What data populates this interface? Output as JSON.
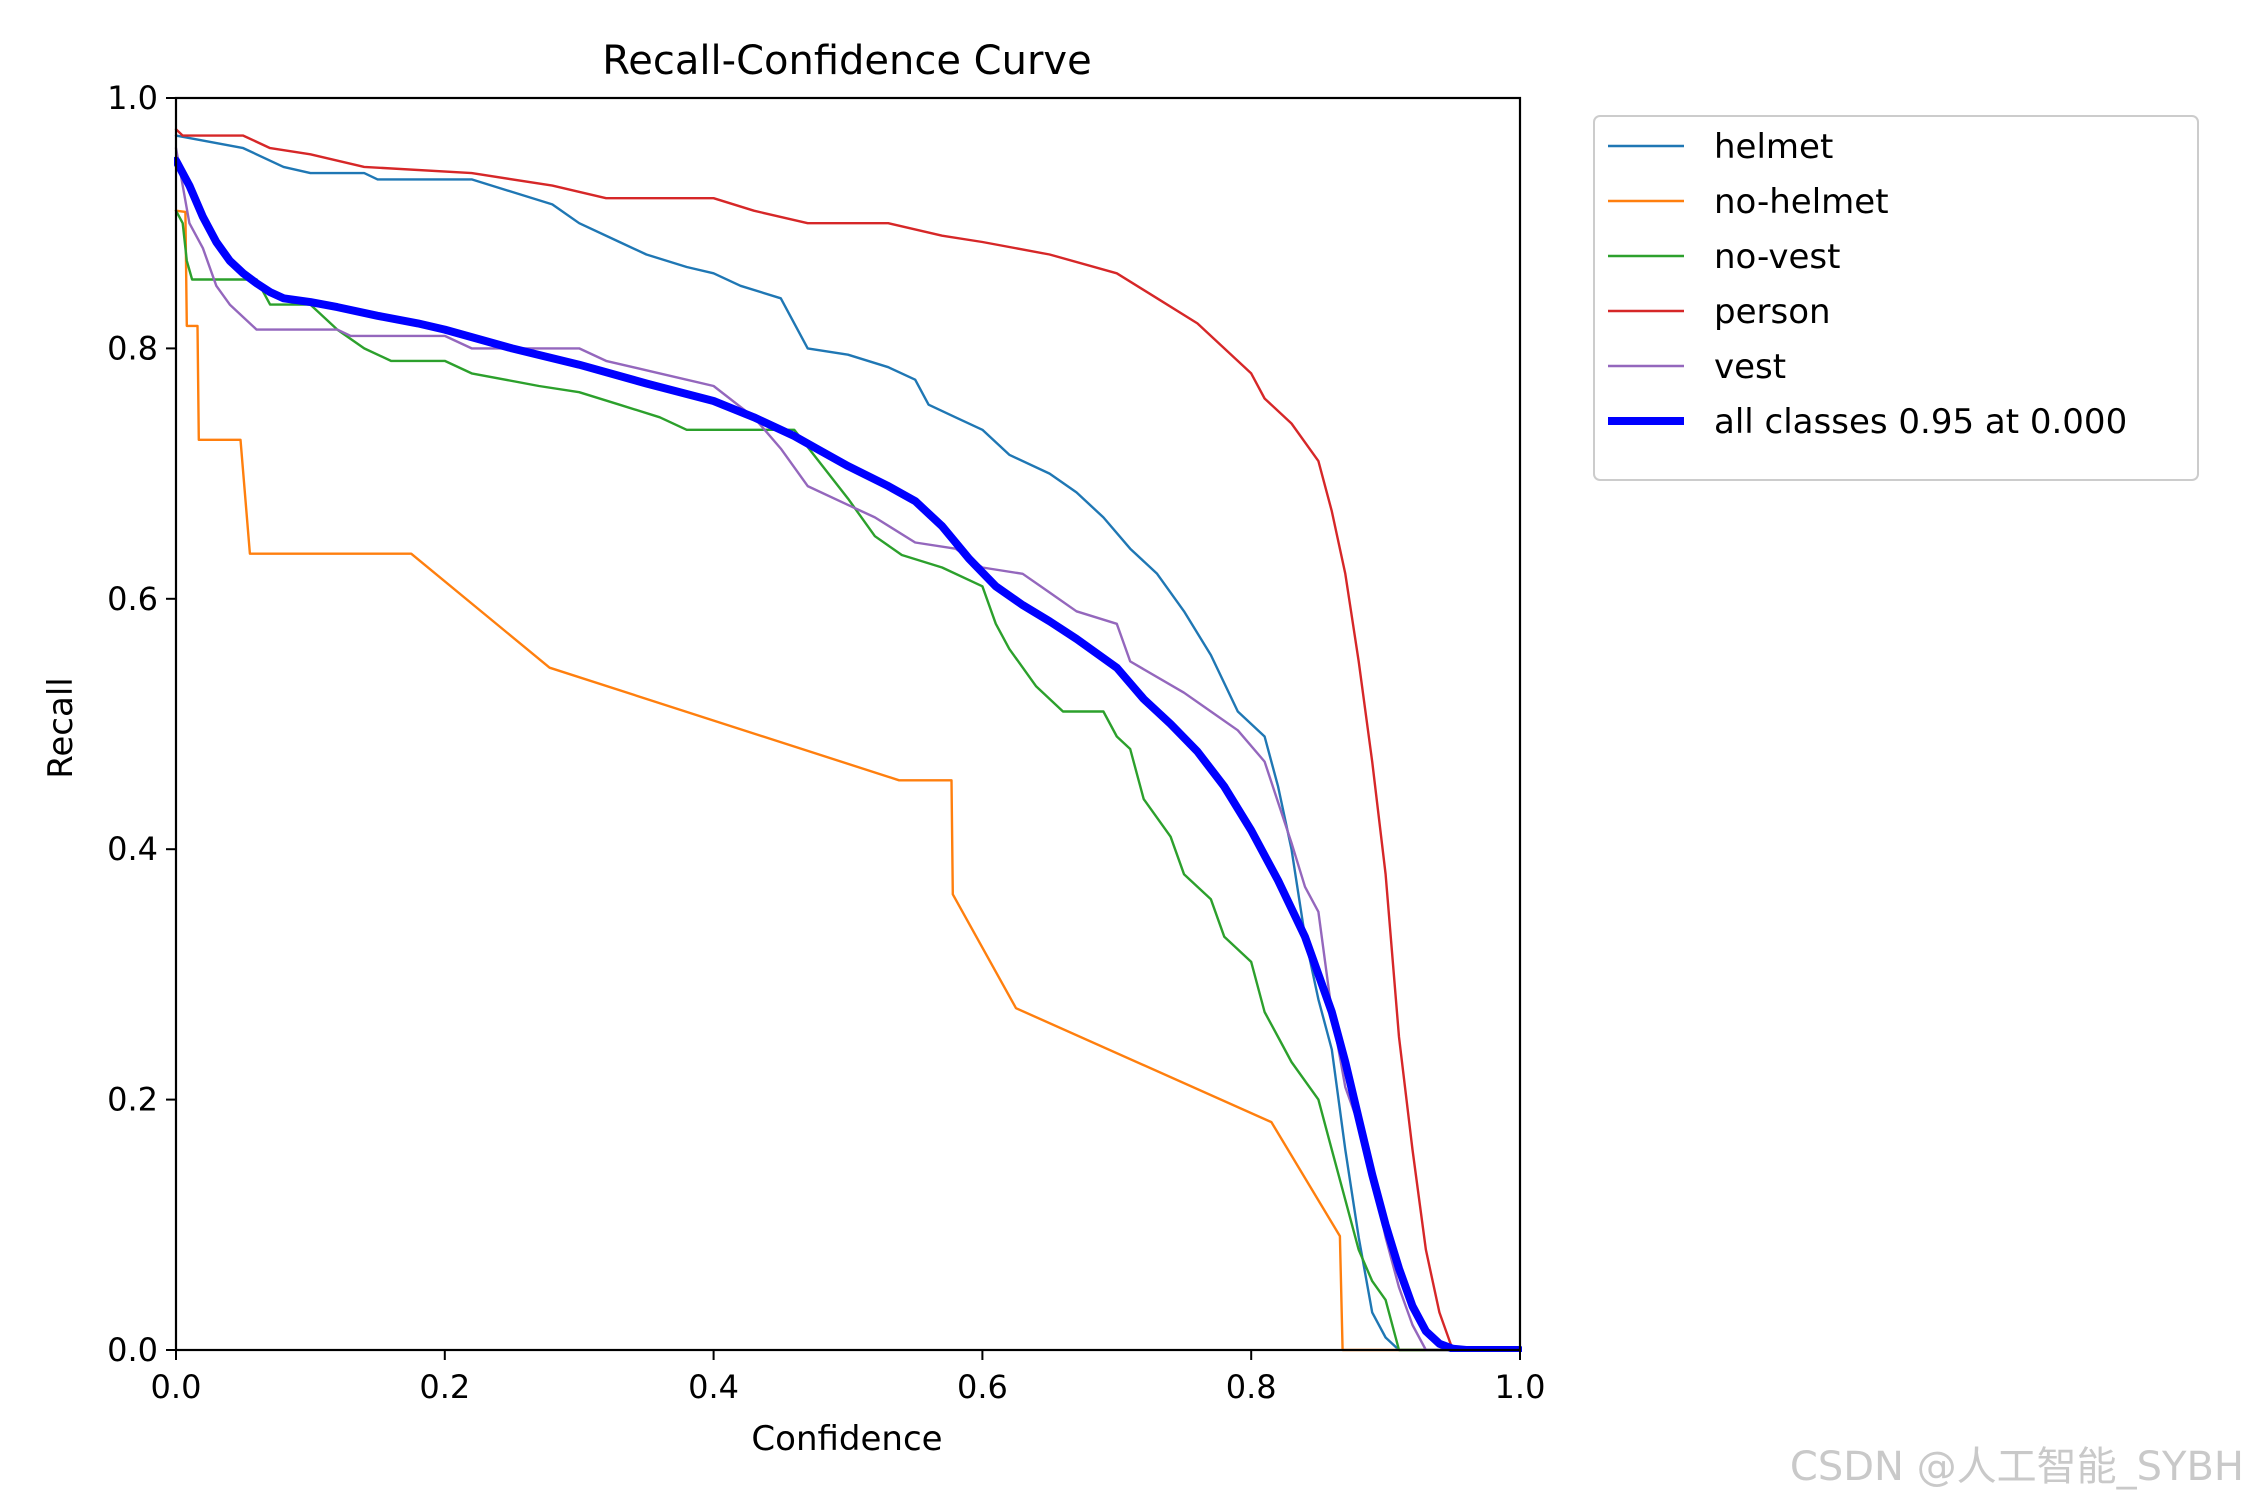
{
  "watermark": "CSDN @人工智能_SYBH",
  "chart_data": {
    "type": "line",
    "title": "Recall-Confidence Curve",
    "xlabel": "Confidence",
    "ylabel": "Recall",
    "xlim": [
      0,
      1
    ],
    "ylim": [
      0,
      1
    ],
    "xticks": [
      "0.0",
      "0.2",
      "0.4",
      "0.6",
      "0.8",
      "1.0"
    ],
    "yticks": [
      "0.0",
      "0.2",
      "0.4",
      "0.6",
      "0.8",
      "1.0"
    ],
    "grid": false,
    "legend_position": "outside-top-right",
    "series": [
      {
        "name": "helmet",
        "color": "#1f77b4",
        "points": [
          [
            0.0,
            0.97
          ],
          [
            0.05,
            0.96
          ],
          [
            0.08,
            0.945
          ],
          [
            0.1,
            0.94
          ],
          [
            0.14,
            0.94
          ],
          [
            0.15,
            0.935
          ],
          [
            0.22,
            0.935
          ],
          [
            0.25,
            0.925
          ],
          [
            0.28,
            0.915
          ],
          [
            0.3,
            0.9
          ],
          [
            0.33,
            0.885
          ],
          [
            0.35,
            0.875
          ],
          [
            0.38,
            0.865
          ],
          [
            0.4,
            0.86
          ],
          [
            0.42,
            0.85
          ],
          [
            0.45,
            0.84
          ],
          [
            0.47,
            0.8
          ],
          [
            0.5,
            0.795
          ],
          [
            0.53,
            0.785
          ],
          [
            0.55,
            0.775
          ],
          [
            0.56,
            0.755
          ],
          [
            0.58,
            0.745
          ],
          [
            0.6,
            0.735
          ],
          [
            0.62,
            0.715
          ],
          [
            0.65,
            0.7
          ],
          [
            0.67,
            0.685
          ],
          [
            0.69,
            0.665
          ],
          [
            0.71,
            0.64
          ],
          [
            0.73,
            0.62
          ],
          [
            0.75,
            0.59
          ],
          [
            0.77,
            0.555
          ],
          [
            0.79,
            0.51
          ],
          [
            0.8,
            0.5
          ],
          [
            0.81,
            0.49
          ],
          [
            0.82,
            0.45
          ],
          [
            0.83,
            0.4
          ],
          [
            0.84,
            0.33
          ],
          [
            0.85,
            0.28
          ],
          [
            0.86,
            0.24
          ],
          [
            0.87,
            0.16
          ],
          [
            0.88,
            0.09
          ],
          [
            0.89,
            0.03
          ],
          [
            0.9,
            0.01
          ],
          [
            0.91,
            0.0
          ],
          [
            1.0,
            0.0
          ]
        ]
      },
      {
        "name": "no-helmet",
        "color": "#ff7f0e",
        "points": [
          [
            0.0,
            0.91
          ],
          [
            0.007,
            0.909
          ],
          [
            0.008,
            0.818
          ],
          [
            0.016,
            0.818
          ],
          [
            0.017,
            0.727
          ],
          [
            0.048,
            0.727
          ],
          [
            0.055,
            0.636
          ],
          [
            0.175,
            0.636
          ],
          [
            0.278,
            0.545
          ],
          [
            0.538,
            0.455
          ],
          [
            0.577,
            0.455
          ],
          [
            0.578,
            0.364
          ],
          [
            0.625,
            0.273
          ],
          [
            0.815,
            0.182
          ],
          [
            0.866,
            0.091
          ],
          [
            0.868,
            0.0
          ],
          [
            1.0,
            0.0
          ]
        ]
      },
      {
        "name": "no-vest",
        "color": "#2ca02c",
        "points": [
          [
            0.0,
            0.91
          ],
          [
            0.005,
            0.9
          ],
          [
            0.008,
            0.87
          ],
          [
            0.012,
            0.855
          ],
          [
            0.06,
            0.855
          ],
          [
            0.07,
            0.835
          ],
          [
            0.1,
            0.835
          ],
          [
            0.12,
            0.815
          ],
          [
            0.14,
            0.8
          ],
          [
            0.16,
            0.79
          ],
          [
            0.2,
            0.79
          ],
          [
            0.22,
            0.78
          ],
          [
            0.27,
            0.77
          ],
          [
            0.3,
            0.765
          ],
          [
            0.33,
            0.755
          ],
          [
            0.36,
            0.745
          ],
          [
            0.38,
            0.735
          ],
          [
            0.46,
            0.735
          ],
          [
            0.5,
            0.68
          ],
          [
            0.52,
            0.65
          ],
          [
            0.54,
            0.635
          ],
          [
            0.57,
            0.625
          ],
          [
            0.6,
            0.61
          ],
          [
            0.61,
            0.58
          ],
          [
            0.62,
            0.56
          ],
          [
            0.64,
            0.53
          ],
          [
            0.66,
            0.51
          ],
          [
            0.69,
            0.51
          ],
          [
            0.7,
            0.49
          ],
          [
            0.71,
            0.48
          ],
          [
            0.72,
            0.44
          ],
          [
            0.74,
            0.41
          ],
          [
            0.75,
            0.38
          ],
          [
            0.77,
            0.36
          ],
          [
            0.78,
            0.33
          ],
          [
            0.8,
            0.31
          ],
          [
            0.81,
            0.27
          ],
          [
            0.82,
            0.25
          ],
          [
            0.83,
            0.23
          ],
          [
            0.85,
            0.2
          ],
          [
            0.86,
            0.16
          ],
          [
            0.87,
            0.12
          ],
          [
            0.88,
            0.08
          ],
          [
            0.89,
            0.055
          ],
          [
            0.9,
            0.04
          ],
          [
            0.91,
            0.0
          ],
          [
            1.0,
            0.0
          ]
        ]
      },
      {
        "name": "person",
        "color": "#d62728",
        "points": [
          [
            0.0,
            0.975
          ],
          [
            0.005,
            0.97
          ],
          [
            0.05,
            0.97
          ],
          [
            0.07,
            0.96
          ],
          [
            0.1,
            0.955
          ],
          [
            0.14,
            0.945
          ],
          [
            0.22,
            0.94
          ],
          [
            0.28,
            0.93
          ],
          [
            0.32,
            0.92
          ],
          [
            0.4,
            0.92
          ],
          [
            0.43,
            0.91
          ],
          [
            0.47,
            0.9
          ],
          [
            0.53,
            0.9
          ],
          [
            0.57,
            0.89
          ],
          [
            0.6,
            0.885
          ],
          [
            0.65,
            0.875
          ],
          [
            0.7,
            0.86
          ],
          [
            0.73,
            0.84
          ],
          [
            0.76,
            0.82
          ],
          [
            0.78,
            0.8
          ],
          [
            0.8,
            0.78
          ],
          [
            0.81,
            0.76
          ],
          [
            0.83,
            0.74
          ],
          [
            0.85,
            0.71
          ],
          [
            0.86,
            0.67
          ],
          [
            0.87,
            0.62
          ],
          [
            0.88,
            0.55
          ],
          [
            0.89,
            0.47
          ],
          [
            0.9,
            0.38
          ],
          [
            0.91,
            0.25
          ],
          [
            0.92,
            0.16
          ],
          [
            0.93,
            0.08
          ],
          [
            0.94,
            0.03
          ],
          [
            0.95,
            0.0
          ],
          [
            1.0,
            0.0
          ]
        ]
      },
      {
        "name": "vest",
        "color": "#9467bd",
        "points": [
          [
            0.0,
            0.96
          ],
          [
            0.01,
            0.9
          ],
          [
            0.02,
            0.88
          ],
          [
            0.03,
            0.85
          ],
          [
            0.04,
            0.835
          ],
          [
            0.05,
            0.825
          ],
          [
            0.06,
            0.815
          ],
          [
            0.12,
            0.815
          ],
          [
            0.13,
            0.81
          ],
          [
            0.2,
            0.81
          ],
          [
            0.22,
            0.8
          ],
          [
            0.3,
            0.8
          ],
          [
            0.32,
            0.79
          ],
          [
            0.36,
            0.78
          ],
          [
            0.4,
            0.77
          ],
          [
            0.43,
            0.745
          ],
          [
            0.45,
            0.72
          ],
          [
            0.47,
            0.69
          ],
          [
            0.5,
            0.675
          ],
          [
            0.52,
            0.665
          ],
          [
            0.55,
            0.645
          ],
          [
            0.58,
            0.64
          ],
          [
            0.6,
            0.625
          ],
          [
            0.63,
            0.62
          ],
          [
            0.65,
            0.605
          ],
          [
            0.67,
            0.59
          ],
          [
            0.7,
            0.58
          ],
          [
            0.71,
            0.55
          ],
          [
            0.75,
            0.525
          ],
          [
            0.77,
            0.51
          ],
          [
            0.79,
            0.495
          ],
          [
            0.81,
            0.47
          ],
          [
            0.83,
            0.405
          ],
          [
            0.84,
            0.37
          ],
          [
            0.85,
            0.35
          ],
          [
            0.86,
            0.27
          ],
          [
            0.87,
            0.21
          ],
          [
            0.88,
            0.18
          ],
          [
            0.89,
            0.14
          ],
          [
            0.9,
            0.09
          ],
          [
            0.91,
            0.05
          ],
          [
            0.92,
            0.02
          ],
          [
            0.93,
            0.0
          ],
          [
            1.0,
            0.0
          ]
        ]
      },
      {
        "name": "all classes 0.95 at 0.000",
        "color": "#0000ff",
        "bold": true,
        "points": [
          [
            0.0,
            0.95
          ],
          [
            0.01,
            0.93
          ],
          [
            0.02,
            0.905
          ],
          [
            0.03,
            0.885
          ],
          [
            0.04,
            0.87
          ],
          [
            0.05,
            0.86
          ],
          [
            0.06,
            0.852
          ],
          [
            0.07,
            0.845
          ],
          [
            0.08,
            0.84
          ],
          [
            0.1,
            0.837
          ],
          [
            0.12,
            0.833
          ],
          [
            0.15,
            0.826
          ],
          [
            0.18,
            0.82
          ],
          [
            0.2,
            0.815
          ],
          [
            0.25,
            0.8
          ],
          [
            0.3,
            0.787
          ],
          [
            0.35,
            0.772
          ],
          [
            0.4,
            0.758
          ],
          [
            0.43,
            0.745
          ],
          [
            0.46,
            0.73
          ],
          [
            0.48,
            0.718
          ],
          [
            0.5,
            0.706
          ],
          [
            0.53,
            0.69
          ],
          [
            0.55,
            0.678
          ],
          [
            0.57,
            0.658
          ],
          [
            0.59,
            0.632
          ],
          [
            0.61,
            0.61
          ],
          [
            0.63,
            0.595
          ],
          [
            0.65,
            0.582
          ],
          [
            0.67,
            0.568
          ],
          [
            0.7,
            0.545
          ],
          [
            0.72,
            0.52
          ],
          [
            0.74,
            0.5
          ],
          [
            0.76,
            0.478
          ],
          [
            0.78,
            0.45
          ],
          [
            0.8,
            0.415
          ],
          [
            0.82,
            0.375
          ],
          [
            0.84,
            0.33
          ],
          [
            0.86,
            0.27
          ],
          [
            0.87,
            0.23
          ],
          [
            0.88,
            0.185
          ],
          [
            0.89,
            0.14
          ],
          [
            0.9,
            0.1
          ],
          [
            0.91,
            0.065
          ],
          [
            0.92,
            0.035
          ],
          [
            0.93,
            0.015
          ],
          [
            0.94,
            0.005
          ],
          [
            0.95,
            0.001
          ],
          [
            0.96,
            0.0
          ],
          [
            1.0,
            0.0
          ]
        ]
      }
    ]
  }
}
